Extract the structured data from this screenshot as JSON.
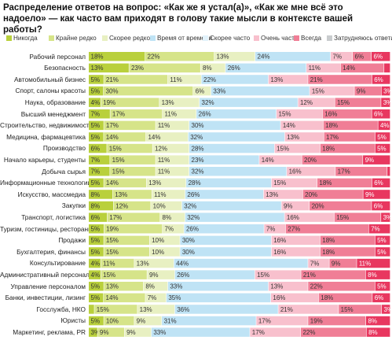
{
  "title": "Распределение ответов на вопрос: «Как же я устал(а)», «Как же мне всё это надоело» — как часто вам приходят в голову такие мысли в контексте вашей работы?",
  "chart_data": {
    "type": "bar",
    "stacked": true,
    "orientation": "horizontal",
    "title": "Распределение ответов на вопрос: «Как же я устал(а)», «Как же мне всё это надоело» — как часто вам приходят в голову такие мысли в контексте вашей работы?",
    "xlabel": "",
    "ylabel": "",
    "legend_position": "top",
    "grid": false,
    "xlim": [
      0,
      100
    ],
    "categories": [
      "Рабочий персонал",
      "Безопасность",
      "Автомобильный бизнес",
      "Спорт, салоны красоты",
      "Наука, образование",
      "Высший менеджмент",
      "Строительство, недвижимость",
      "Медицина, фармацевтика",
      "Производство",
      "Начало карьеры, студенты",
      "Добыча сырья",
      "Информационные технологии",
      "Искусство, массмедиа",
      "Закупки",
      "Транспорт, логистика",
      "Туризм, гостиницы, рестораны",
      "Продажи",
      "Бухгалтерия, финансы",
      "Консультирование",
      "Административный персонал",
      "Управление персоналом",
      "Банки, инвестиции, лизинг",
      "Госслужба, НКО",
      "Юристы",
      "Маркетинг, реклама, PR"
    ],
    "series": [
      {
        "name": "Никогда",
        "color": "#b9d03c",
        "values": [
          18,
          13,
          5,
          5,
          4,
          7,
          5,
          5,
          6,
          7,
          7,
          5,
          8,
          8,
          6,
          5,
          5,
          5,
          4,
          4,
          5,
          5,
          2,
          5,
          3
        ]
      },
      {
        "name": "Крайне редко",
        "color": "#d6e489",
        "values": [
          22,
          23,
          21,
          30,
          19,
          17,
          17,
          14,
          15,
          15,
          15,
          14,
          13,
          12,
          17,
          19,
          15,
          15,
          11,
          15,
          13,
          14,
          15,
          10,
          9
        ]
      },
      {
        "name": "Скорее редко",
        "color": "#e8f0c2",
        "values": [
          13,
          8,
          11,
          6,
          13,
          11,
          11,
          14,
          12,
          11,
          11,
          13,
          11,
          10,
          8,
          7,
          10,
          10,
          13,
          9,
          8,
          7,
          13,
          9,
          9
        ]
      },
      {
        "name": "Время от времени",
        "color": "#bfe3f5",
        "values": [
          24,
          26,
          22,
          33,
          32,
          26,
          30,
          32,
          28,
          23,
          32,
          28,
          26,
          32,
          32,
          26,
          30,
          30,
          44,
          26,
          33,
          35,
          36,
          31,
          33
        ]
      },
      {
        "name": "Скорее часто",
        "color": "#e2f2fb",
        "values": [
          0,
          0,
          0,
          0,
          0,
          0,
          0,
          0,
          0,
          0,
          0,
          0,
          0,
          0,
          0,
          0,
          0,
          0,
          0,
          0,
          0,
          0,
          0,
          0,
          0
        ]
      },
      {
        "name": "Очень часто",
        "color": "#f8c0cd",
        "values": [
          7,
          11,
          13,
          15,
          12,
          15,
          14,
          13,
          15,
          14,
          16,
          15,
          13,
          9,
          16,
          7,
          16,
          16,
          7,
          15,
          13,
          16,
          21,
          17,
          17
        ]
      },
      {
        "name": "Всегда",
        "color": "#f07e96",
        "values": [
          6,
          14,
          21,
          9,
          15,
          16,
          18,
          17,
          18,
          20,
          17,
          18,
          20,
          20,
          15,
          27,
          18,
          18,
          9,
          21,
          22,
          18,
          15,
          19,
          22
        ]
      },
      {
        "name": "Затрудняюсь ответить",
        "color": "#c9ccce",
        "values": [
          0,
          0,
          0,
          0,
          0,
          0,
          0,
          0,
          0,
          0,
          0,
          0,
          0,
          0,
          0,
          0,
          0,
          0,
          0,
          0,
          0,
          0,
          0,
          0,
          0
        ]
      }
    ],
    "extra_segments": {
      "name": "Всегда (тёмный)",
      "color": "#e8375f",
      "values": [
        6,
        2,
        6,
        3,
        3,
        6,
        4,
        5,
        5,
        9,
        1,
        6,
        9,
        6,
        3,
        7,
        5,
        5,
        11,
        8,
        5,
        6,
        3,
        8,
        8
      ]
    }
  }
}
